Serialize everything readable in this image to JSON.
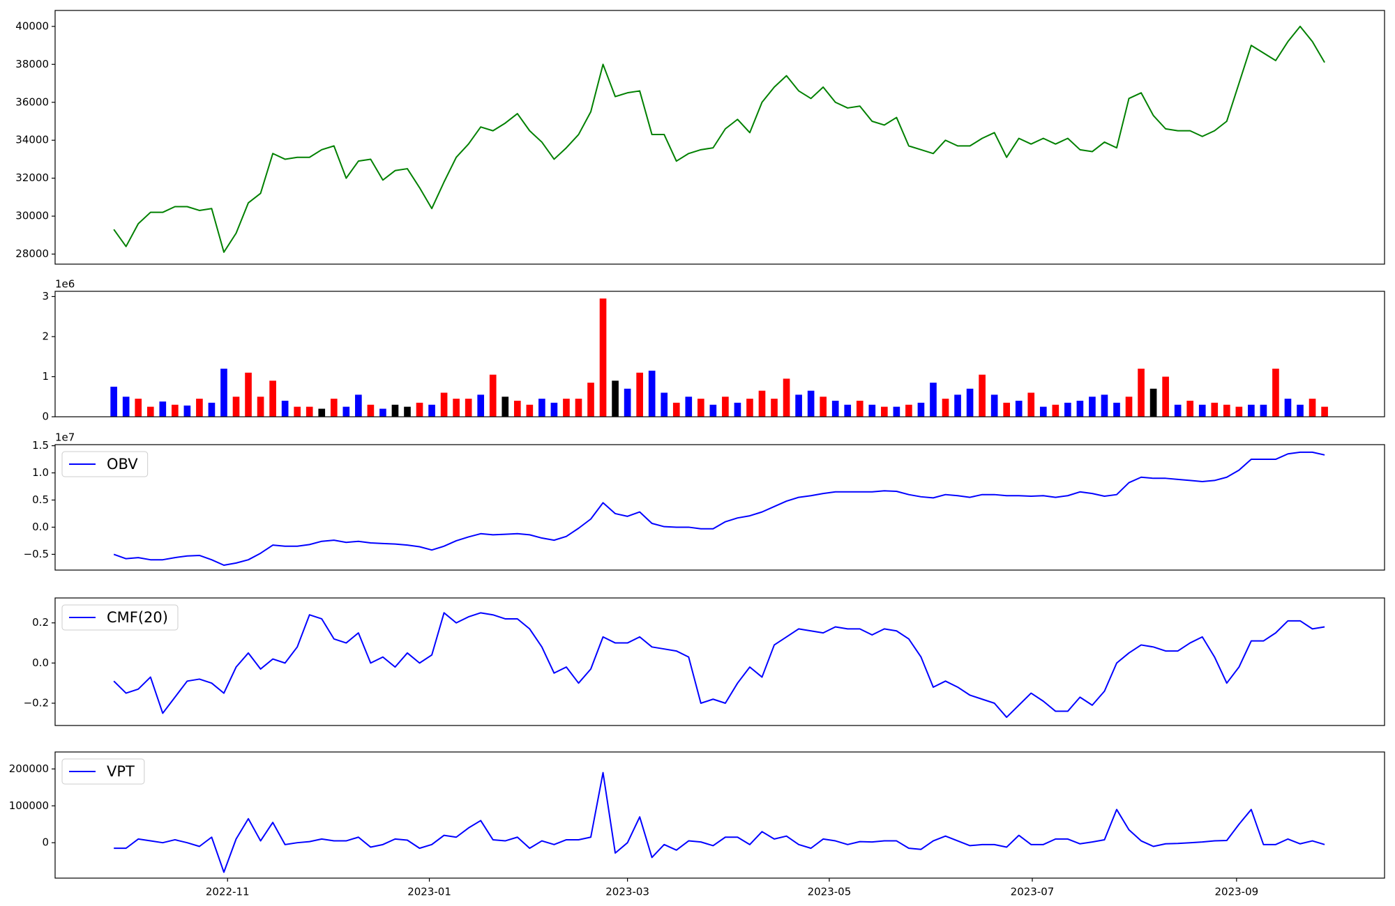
{
  "chart_data": [
    {
      "type": "line",
      "color": "#008000",
      "values": [
        29300,
        28400,
        29600,
        30200,
        30200,
        30500,
        30500,
        30300,
        30400,
        28100,
        29100,
        30700,
        31200,
        33300,
        33000,
        33100,
        33100,
        33500,
        33700,
        32000,
        32900,
        33000,
        31900,
        32400,
        32500,
        31500,
        30400,
        31800,
        33100,
        33800,
        34700,
        34500,
        34900,
        35400,
        34500,
        33900,
        33000,
        33600,
        34300,
        35500,
        38000,
        36300,
        36500,
        36600,
        34300,
        34300,
        32900,
        33300,
        33500,
        33600,
        34600,
        35100,
        34400,
        36000,
        36800,
        37400,
        36600,
        36200,
        36800,
        36000,
        35700,
        35800,
        35000,
        34800,
        35200,
        33700,
        33500,
        33300,
        34000,
        33700,
        33700,
        34100,
        34400,
        33100,
        34100,
        33800,
        34100,
        33800,
        34100,
        33500,
        33400,
        33900,
        33600,
        36200,
        36500,
        35300,
        34600,
        34500,
        34500,
        34200,
        34500,
        35000,
        37000,
        39000,
        38600,
        38200,
        39200,
        40000,
        39200,
        38100
      ],
      "xlim": [
        -4.8,
        103.9
      ],
      "ylim": [
        27470,
        40840
      ],
      "yticks": [
        28000,
        30000,
        32000,
        34000,
        36000,
        38000,
        40000
      ]
    },
    {
      "type": "bar",
      "offset_label": "1e6",
      "values": [
        750000,
        500000,
        450000,
        250000,
        380000,
        300000,
        280000,
        450000,
        350000,
        1200000,
        500000,
        1100000,
        500000,
        900000,
        400000,
        250000,
        250000,
        200000,
        450000,
        250000,
        550000,
        300000,
        200000,
        300000,
        250000,
        350000,
        300000,
        600000,
        450000,
        450000,
        550000,
        1050000,
        500000,
        400000,
        300000,
        450000,
        350000,
        450000,
        450000,
        850000,
        2950000,
        900000,
        700000,
        1100000,
        1150000,
        600000,
        350000,
        500000,
        450000,
        300000,
        500000,
        350000,
        450000,
        650000,
        450000,
        950000,
        550000,
        650000,
        500000,
        400000,
        300000,
        400000,
        300000,
        250000,
        250000,
        300000,
        350000,
        850000,
        450000,
        550000,
        700000,
        1050000,
        550000,
        350000,
        400000,
        600000,
        250000,
        300000,
        350000,
        400000,
        500000,
        550000,
        350000,
        500000,
        1200000,
        700000,
        1000000,
        300000,
        400000,
        300000,
        350000,
        300000,
        250000,
        300000,
        300000,
        1200000,
        450000,
        300000,
        450000,
        250000
      ],
      "colors": [
        "blue",
        "blue",
        "red",
        "red",
        "blue",
        "red",
        "blue",
        "red",
        "blue",
        "blue",
        "red",
        "red",
        "red",
        "red",
        "blue",
        "red",
        "red",
        "black",
        "red",
        "blue",
        "blue",
        "red",
        "blue",
        "black",
        "black",
        "red",
        "blue",
        "red",
        "red",
        "red",
        "blue",
        "red",
        "black",
        "red",
        "red",
        "blue",
        "blue",
        "red",
        "red",
        "red",
        "red",
        "black",
        "blue",
        "red",
        "blue",
        "blue",
        "red",
        "blue",
        "red",
        "blue",
        "red",
        "blue",
        "red",
        "red",
        "red",
        "red",
        "blue",
        "blue",
        "red",
        "blue",
        "blue",
        "red",
        "blue",
        "red",
        "blue",
        "red",
        "blue",
        "blue",
        "red",
        "blue",
        "blue",
        "red",
        "blue",
        "red",
        "blue",
        "red",
        "blue",
        "red",
        "blue",
        "blue",
        "blue",
        "blue",
        "blue",
        "red",
        "red",
        "black",
        "red",
        "blue",
        "red",
        "blue",
        "red",
        "red",
        "red",
        "blue",
        "blue",
        "red",
        "blue",
        "blue",
        "red",
        "red"
      ],
      "xlim": [
        -4.8,
        103.9
      ],
      "ylim": [
        0,
        3130000
      ],
      "yticks": [
        0,
        {
          "value": 1000000,
          "label": "1"
        },
        {
          "value": 2000000,
          "label": "2"
        },
        {
          "value": 3000000,
          "label": "3"
        }
      ]
    },
    {
      "type": "line",
      "offset_label": "1e7",
      "legend": "upper left",
      "series": [
        {
          "name": "OBV",
          "color": "#0000ff",
          "values": [
            -5000000,
            -5800000,
            -5600000,
            -6000000,
            -6000000,
            -5600000,
            -5300000,
            -5200000,
            -6000000,
            -7000000,
            -6600000,
            -6000000,
            -4800000,
            -3300000,
            -3500000,
            -3500000,
            -3200000,
            -2600000,
            -2400000,
            -2800000,
            -2600000,
            -2900000,
            -3000000,
            -3100000,
            -3300000,
            -3600000,
            -4200000,
            -3500000,
            -2500000,
            -1800000,
            -1200000,
            -1400000,
            -1300000,
            -1200000,
            -1400000,
            -2000000,
            -2400000,
            -1700000,
            -200000,
            1500000,
            4500000,
            2500000,
            2000000,
            2800000,
            700000,
            100000,
            0,
            0,
            -300000,
            -300000,
            1000000,
            1700000,
            2100000,
            2800000,
            3800000,
            4800000,
            5500000,
            5800000,
            6200000,
            6500000,
            6500000,
            6500000,
            6500000,
            6700000,
            6600000,
            6000000,
            5600000,
            5400000,
            6000000,
            5800000,
            5500000,
            6000000,
            6000000,
            5800000,
            5800000,
            5700000,
            5800000,
            5500000,
            5800000,
            6500000,
            6200000,
            5700000,
            6000000,
            8200000,
            9200000,
            9000000,
            9000000,
            8800000,
            8600000,
            8400000,
            8600000,
            9200000,
            10500000,
            12500000,
            12500000,
            12500000,
            13500000,
            13800000,
            13800000,
            13300000
          ]
        }
      ],
      "xlim": [
        -4.8,
        103.9
      ],
      "ylim": [
        -7900000,
        15200000
      ],
      "yticks": [
        {
          "value": -5000000,
          "label": "−0.5"
        },
        {
          "value": 0,
          "label": "0.0"
        },
        {
          "value": 5000000,
          "label": "0.5"
        },
        {
          "value": 10000000,
          "label": "1.0"
        },
        {
          "value": 15000000,
          "label": "1.5"
        }
      ]
    },
    {
      "type": "line",
      "legend": "upper left",
      "series": [
        {
          "name": "CMF(20)",
          "color": "#0000ff",
          "values": [
            -0.09,
            -0.15,
            -0.13,
            -0.07,
            -0.25,
            -0.17,
            -0.09,
            -0.08,
            -0.1,
            -0.15,
            -0.02,
            0.05,
            -0.03,
            0.02,
            0.0,
            0.08,
            0.24,
            0.22,
            0.12,
            0.1,
            0.15,
            0.0,
            0.03,
            -0.02,
            0.05,
            0.0,
            0.04,
            0.25,
            0.2,
            0.23,
            0.25,
            0.24,
            0.22,
            0.22,
            0.17,
            0.08,
            -0.05,
            -0.02,
            -0.1,
            -0.03,
            0.13,
            0.1,
            0.1,
            0.13,
            0.08,
            0.07,
            0.06,
            0.03,
            -0.2,
            -0.18,
            -0.2,
            -0.1,
            -0.02,
            -0.07,
            0.09,
            0.13,
            0.17,
            0.16,
            0.15,
            0.18,
            0.17,
            0.17,
            0.14,
            0.17,
            0.16,
            0.12,
            0.03,
            -0.12,
            -0.09,
            -0.12,
            -0.16,
            -0.18,
            -0.2,
            -0.27,
            -0.21,
            -0.15,
            -0.19,
            -0.24,
            -0.24,
            -0.17,
            -0.21,
            -0.14,
            0.0,
            0.05,
            0.09,
            0.08,
            0.06,
            0.06,
            0.1,
            0.13,
            0.03,
            -0.1,
            -0.02,
            0.11,
            0.11,
            0.15,
            0.21,
            0.21,
            0.17,
            0.18
          ]
        }
      ],
      "xlim": [
        -4.8,
        103.9
      ],
      "ylim": [
        -0.311,
        0.324
      ],
      "yticks": [
        {
          "value": -0.2,
          "label": "−0.2"
        },
        {
          "value": 0,
          "label": "0.0"
        },
        0.2
      ]
    },
    {
      "type": "line",
      "legend": "upper left",
      "series": [
        {
          "name": "VPT",
          "color": "#0000ff",
          "values": [
            -15000,
            -15000,
            10000,
            5000,
            0,
            8000,
            0,
            -10000,
            15000,
            -80000,
            10000,
            65000,
            5000,
            55000,
            -5000,
            0,
            3000,
            10000,
            5000,
            5000,
            15000,
            -12000,
            -5000,
            10000,
            7000,
            -15000,
            -5000,
            20000,
            15000,
            40000,
            60000,
            8000,
            5000,
            15000,
            -15000,
            5000,
            -5000,
            8000,
            8000,
            15000,
            190000,
            -28000,
            0,
            70000,
            -40000,
            -5000,
            -20000,
            5000,
            2000,
            -8000,
            15000,
            15000,
            -5000,
            30000,
            10000,
            18000,
            -5000,
            -15000,
            10000,
            5000,
            -5000,
            3000,
            2000,
            5000,
            5000,
            -15000,
            -18000,
            5000,
            18000,
            5000,
            -8000,
            -5000,
            -5000,
            -12000,
            20000,
            -5000,
            -5000,
            10000,
            10000,
            -3000,
            2000,
            8000,
            90000,
            35000,
            5000,
            -10000,
            -3000,
            -2000,
            0,
            2000,
            5000,
            6000,
            50000,
            90000,
            -5000,
            -5000,
            10000,
            -3000,
            5000,
            -5000
          ]
        }
      ],
      "xlim": [
        -4.8,
        103.9
      ],
      "ylim": [
        -96000,
        246000
      ],
      "yticks": [
        0,
        100000,
        200000
      ],
      "xticks": [
        {
          "value": 9.3,
          "label": "2022-11"
        },
        {
          "value": 25.8,
          "label": "2023-01"
        },
        {
          "value": 42.0,
          "label": "2023-03"
        },
        {
          "value": 58.5,
          "label": "2023-05"
        },
        {
          "value": 75.1,
          "label": "2023-07"
        },
        {
          "value": 91.8,
          "label": "2023-09"
        }
      ]
    }
  ]
}
